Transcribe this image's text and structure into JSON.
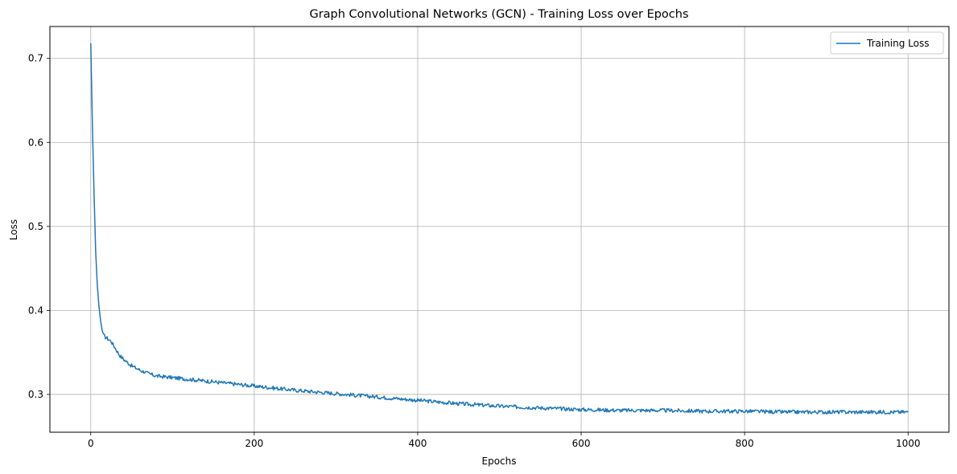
{
  "chart_data": {
    "type": "line",
    "title": "Graph Convolutional Networks (GCN) - Training Loss over Epochs",
    "xlabel": "Epochs",
    "ylabel": "Loss",
    "xlim": [
      -50,
      1050
    ],
    "ylim": [
      0.255,
      0.738
    ],
    "xticks": [
      0,
      200,
      400,
      600,
      800,
      1000
    ],
    "yticks": [
      0.3,
      0.4,
      0.5,
      0.6,
      0.7
    ],
    "xtick_labels": [
      "0",
      "200",
      "400",
      "600",
      "800",
      "1000"
    ],
    "ytick_labels": [
      "0.3",
      "0.4",
      "0.5",
      "0.6",
      "0.7"
    ],
    "grid": true,
    "legend_position": "top-right",
    "series": [
      {
        "name": "Training Loss",
        "color": "#1f77b4",
        "x": [
          0,
          2,
          4,
          6,
          8,
          10,
          12,
          14,
          16,
          18,
          20,
          25,
          30,
          35,
          40,
          45,
          50,
          60,
          70,
          80,
          90,
          100,
          120,
          140,
          160,
          180,
          200,
          250,
          300,
          350,
          400,
          450,
          500,
          550,
          600,
          650,
          700,
          750,
          800,
          850,
          900,
          950,
          1000
        ],
        "values": [
          0.718,
          0.62,
          0.54,
          0.47,
          0.43,
          0.405,
          0.388,
          0.376,
          0.37,
          0.368,
          0.367,
          0.363,
          0.355,
          0.347,
          0.342,
          0.338,
          0.334,
          0.329,
          0.325,
          0.322,
          0.321,
          0.32,
          0.318,
          0.316,
          0.314,
          0.312,
          0.31,
          0.305,
          0.301,
          0.297,
          0.293,
          0.289,
          0.286,
          0.284,
          0.282,
          0.281,
          0.281,
          0.28,
          0.28,
          0.279,
          0.279,
          0.279,
          0.279
        ]
      }
    ]
  }
}
